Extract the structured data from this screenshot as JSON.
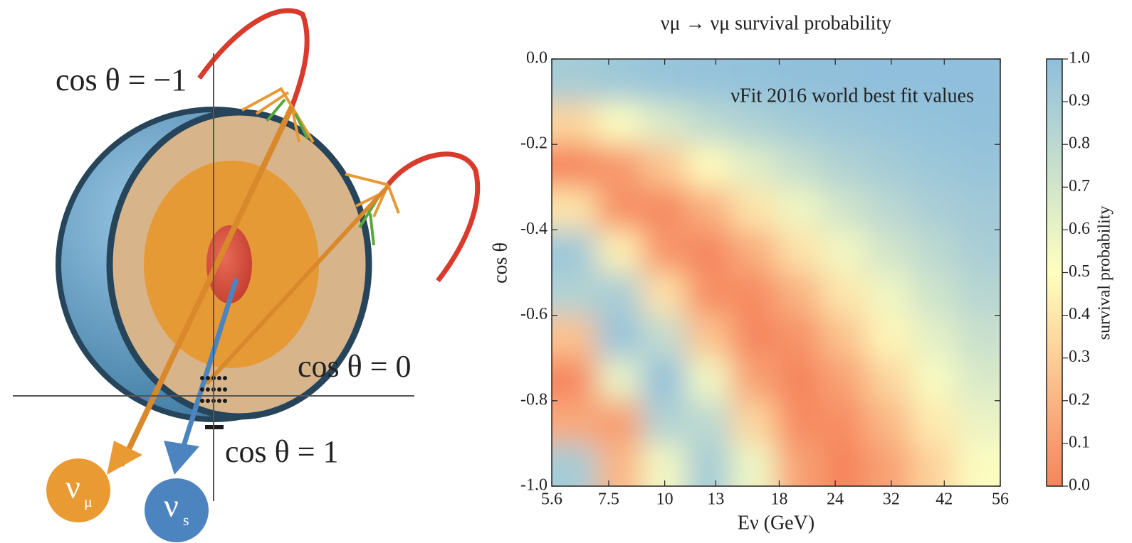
{
  "illustration": {
    "labels": [
      "cos θ = −1",
      "cos θ = 0",
      "cos θ = 1"
    ],
    "particles": [
      {
        "symbol": "ν",
        "sub": "μ"
      },
      {
        "symbol": "ν",
        "sub": "s"
      }
    ]
  },
  "chart_data": {
    "type": "heatmap",
    "title": "νμ → νμ survival probability",
    "annotation": "νFit 2016 world best fit values",
    "xlabel": "Eν (GeV)",
    "ylabel": "cos θ",
    "xscale": "log",
    "xlim": [
      5.6,
      56
    ],
    "ylim": [
      -1,
      0
    ],
    "xticks": [
      5.6,
      7.5,
      10,
      13,
      18,
      24,
      32,
      42,
      56
    ],
    "yticks": [
      {
        "value": 0,
        "label": "0.0"
      },
      -0.2,
      -0.4,
      -0.6,
      -0.8,
      {
        "value": -1,
        "label": "-1.0"
      }
    ],
    "x": [
      6.28,
      7.91,
      9.96,
      12.5,
      15.8,
      19.9,
      25.0,
      31.5,
      39.7,
      50.0
    ],
    "y": [
      -0.05,
      -0.15,
      -0.25,
      -0.35,
      -0.45,
      -0.55,
      -0.65,
      -0.75,
      -0.85,
      -0.95
    ],
    "z": [
      [
        0.9,
        0.93,
        0.96,
        0.97,
        0.98,
        0.99,
        0.99,
        1.0,
        1.0,
        1.0
      ],
      [
        0.33,
        0.52,
        0.67,
        0.79,
        0.86,
        0.91,
        0.94,
        0.96,
        0.98,
        0.99
      ],
      [
        0.0,
        0.08,
        0.27,
        0.48,
        0.64,
        0.76,
        0.85,
        0.9,
        0.94,
        0.96
      ],
      [
        0.39,
        0.05,
        0.02,
        0.18,
        0.39,
        0.57,
        0.71,
        0.81,
        0.88,
        0.92
      ],
      [
        0.94,
        0.44,
        0.07,
        0.01,
        0.17,
        0.38,
        0.56,
        0.7,
        0.8,
        0.88
      ],
      [
        0.85,
        0.89,
        0.38,
        0.04,
        0.03,
        0.19,
        0.4,
        0.57,
        0.72,
        0.82
      ],
      [
        0.25,
        0.97,
        0.77,
        0.26,
        0.01,
        0.06,
        0.25,
        0.46,
        0.62,
        0.74
      ],
      [
        0.01,
        0.6,
        0.99,
        0.56,
        0.12,
        0.0,
        0.12,
        0.33,
        0.53,
        0.67
      ],
      [
        0.15,
        0.1,
        0.85,
        0.8,
        0.33,
        0.03,
        0.04,
        0.21,
        0.42,
        0.59
      ],
      [
        0.9,
        0.2,
        0.56,
        0.9,
        0.57,
        0.12,
        0.0,
        0.12,
        0.32,
        0.52
      ]
    ],
    "colormap": [
      "#f6845c",
      "#ffffbf",
      "#8fbfdc"
    ],
    "colorbar": {
      "label": "survival probability",
      "lim": [
        0,
        1
      ],
      "ticks": [
        {
          "value": 0,
          "label": "0.0"
        },
        0.1,
        0.2,
        0.3,
        0.4,
        0.5,
        0.6,
        0.7,
        0.8,
        0.9,
        {
          "value": 1,
          "label": "1.0"
        }
      ]
    }
  }
}
